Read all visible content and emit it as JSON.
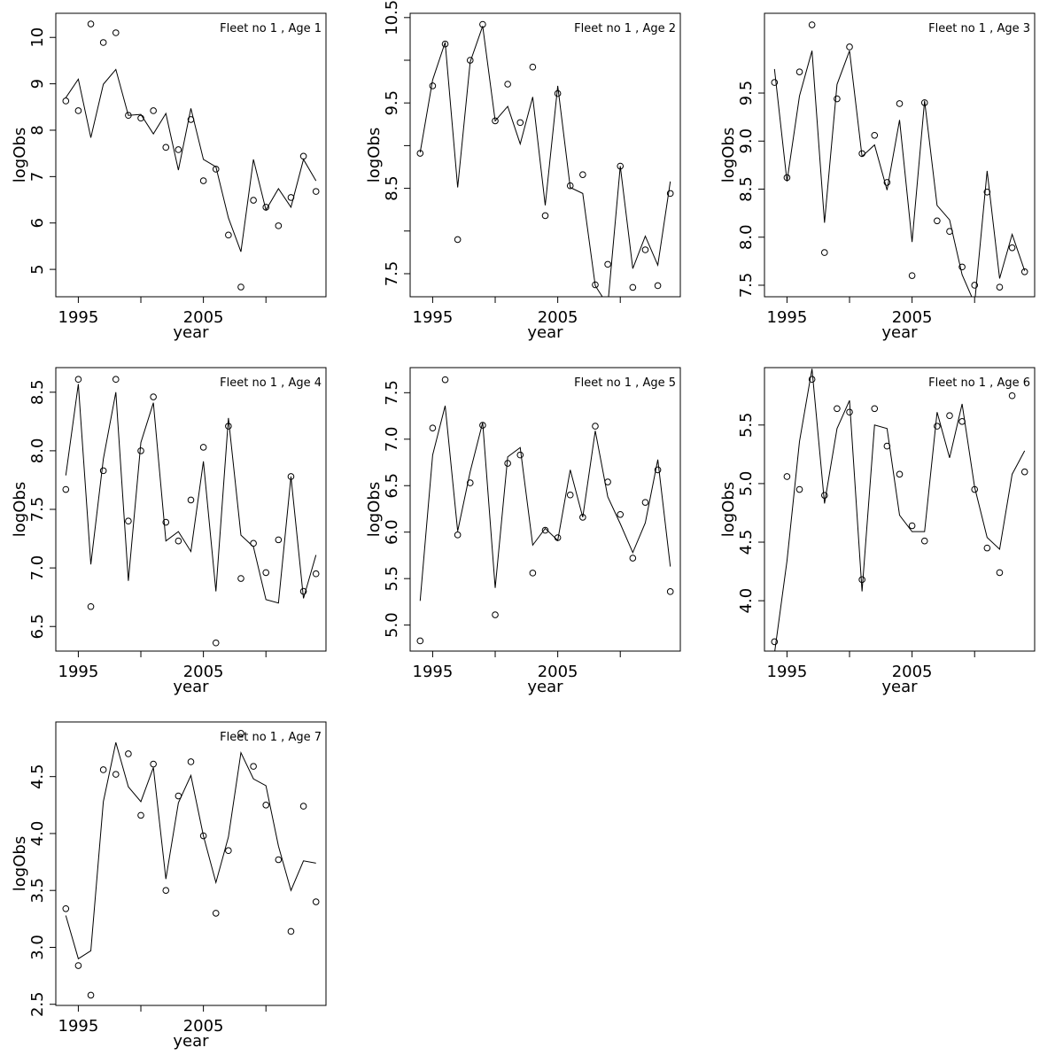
{
  "chart_data": [
    {
      "type": "line",
      "title": "Fleet no 1 , Age 1",
      "xlabel": "year",
      "ylabel": "logObs",
      "x": [
        1994,
        1995,
        1996,
        1997,
        1998,
        1999,
        2000,
        2001,
        2002,
        2003,
        2004,
        2005,
        2006,
        2007,
        2008,
        2009,
        2010,
        2011,
        2012,
        2013,
        2014
      ],
      "xlim": [
        1993.2,
        2014.8
      ],
      "xticks": [
        1995,
        {
          "value": 2000,
          "label": null
        },
        2005,
        {
          "value": 2010,
          "label": null
        }
      ],
      "ylim": [
        4.41,
        10.52
      ],
      "yticks": [
        5,
        6,
        7,
        8,
        9,
        10
      ],
      "series": [
        {
          "style": "points",
          "color": "#000000",
          "values": [
            8.63,
            8.42,
            10.29,
            9.89,
            10.1,
            8.32,
            8.26,
            8.42,
            7.63,
            7.58,
            8.23,
            6.91,
            7.16,
            5.74,
            4.62,
            6.49,
            6.34,
            5.94,
            6.55,
            7.44,
            6.68
          ]
        },
        {
          "style": "line",
          "color": "#000000",
          "values": [
            8.7,
            9.1,
            7.84,
            8.99,
            9.31,
            8.32,
            8.34,
            7.92,
            8.36,
            7.14,
            8.47,
            7.37,
            7.21,
            6.11,
            5.38,
            7.37,
            6.28,
            6.74,
            6.34,
            7.37,
            6.91
          ]
        }
      ]
    },
    {
      "type": "line",
      "title": "Fleet no 1 , Age 2",
      "xlabel": "year",
      "ylabel": "logObs",
      "x": [
        1994,
        1995,
        1996,
        1997,
        1998,
        1999,
        2000,
        2001,
        2002,
        2003,
        2004,
        2005,
        2006,
        2007,
        2008,
        2009,
        2010,
        2011,
        2012,
        2013,
        2014
      ],
      "xlim": [
        1993.2,
        2014.8
      ],
      "xticks": [
        1995,
        {
          "value": 2000,
          "label": null
        },
        2005,
        {
          "value": 2010,
          "label": null
        }
      ],
      "ylim": [
        7.23,
        10.55
      ],
      "yticks": [
        7.5,
        {
          "value": 8,
          "label": null
        },
        8.5,
        {
          "value": 9,
          "label": null
        },
        9.5,
        {
          "value": 10,
          "label": null
        },
        10.5
      ],
      "series": [
        {
          "style": "points",
          "color": "#000000",
          "values": [
            8.91,
            9.7,
            10.19,
            7.9,
            10.0,
            10.42,
            9.29,
            9.72,
            9.27,
            9.92,
            8.18,
            9.61,
            8.53,
            8.66,
            7.37,
            7.61,
            8.76,
            7.34,
            7.78,
            7.36,
            8.44
          ]
        },
        {
          "style": "line",
          "color": "#000000",
          "values": [
            8.92,
            9.77,
            10.21,
            8.51,
            9.98,
            10.4,
            9.29,
            9.46,
            9.02,
            9.57,
            8.3,
            9.7,
            8.51,
            8.44,
            7.36,
            7.13,
            8.76,
            7.56,
            7.94,
            7.6,
            8.58
          ]
        }
      ]
    },
    {
      "type": "line",
      "title": "Fleet no 1 , Age 3",
      "xlabel": "year",
      "ylabel": "logObs",
      "x": [
        1994,
        1995,
        1996,
        1997,
        1998,
        1999,
        2000,
        2001,
        2002,
        2003,
        2004,
        2005,
        2006,
        2007,
        2008,
        2009,
        2010,
        2011,
        2012,
        2013,
        2014
      ],
      "xlim": [
        1993.2,
        2014.8
      ],
      "xticks": [
        1995,
        {
          "value": 2000,
          "label": null
        },
        2005,
        {
          "value": 2010,
          "label": null
        }
      ],
      "ylim": [
        7.38,
        10.33
      ],
      "yticks": [
        7.5,
        {
          "value": 8,
          "label": "8.0"
        },
        8.5,
        {
          "value": 9,
          "label": "9.0"
        },
        9.5
      ],
      "series": [
        {
          "style": "points",
          "color": "#000000",
          "values": [
            9.61,
            8.62,
            9.72,
            10.21,
            7.84,
            9.44,
            9.98,
            8.87,
            9.06,
            8.57,
            9.39,
            7.6,
            9.4,
            8.17,
            8.06,
            7.69,
            7.5,
            8.47,
            7.48,
            7.89,
            7.64
          ]
        },
        {
          "style": "line",
          "color": "#000000",
          "values": [
            9.75,
            8.58,
            9.47,
            9.94,
            8.15,
            9.59,
            9.94,
            8.84,
            8.96,
            8.49,
            9.22,
            7.95,
            9.42,
            8.33,
            8.18,
            7.61,
            7.31,
            8.69,
            7.57,
            8.03,
            7.65
          ]
        }
      ]
    },
    {
      "type": "line",
      "title": "Fleet no 1 , Age 4",
      "xlabel": "year",
      "ylabel": "logObs",
      "x": [
        1994,
        1995,
        1996,
        1997,
        1998,
        1999,
        2000,
        2001,
        2002,
        2003,
        2004,
        2005,
        2006,
        2007,
        2008,
        2009,
        2010,
        2011,
        2012,
        2013,
        2014
      ],
      "xlim": [
        1993.2,
        2014.8
      ],
      "xticks": [
        1995,
        {
          "value": 2000,
          "label": null
        },
        2005,
        {
          "value": 2010,
          "label": null
        }
      ],
      "ylim": [
        6.29,
        8.71
      ],
      "yticks": [
        6.5,
        {
          "value": 7,
          "label": "7.0"
        },
        7.5,
        {
          "value": 8,
          "label": "8.0"
        },
        8.5
      ],
      "series": [
        {
          "style": "points",
          "color": "#000000",
          "values": [
            7.67,
            8.61,
            6.67,
            7.83,
            8.61,
            7.4,
            8.0,
            8.46,
            7.39,
            7.23,
            7.58,
            8.03,
            6.36,
            8.21,
            6.91,
            7.21,
            6.96,
            7.24,
            7.78,
            6.8,
            6.95
          ]
        },
        {
          "style": "line",
          "color": "#000000",
          "values": [
            7.79,
            8.57,
            7.03,
            7.93,
            8.5,
            6.89,
            8.07,
            8.41,
            7.23,
            7.31,
            7.14,
            7.91,
            6.8,
            8.28,
            7.28,
            7.18,
            6.73,
            6.7,
            7.78,
            6.74,
            7.11
          ]
        }
      ]
    },
    {
      "type": "line",
      "title": "Fleet no 1 , Age 5",
      "xlabel": "year",
      "ylabel": "logObs",
      "x": [
        1994,
        1995,
        1996,
        1997,
        1998,
        1999,
        2000,
        2001,
        2002,
        2003,
        2004,
        2005,
        2006,
        2007,
        2008,
        2009,
        2010,
        2011,
        2012,
        2013,
        2014
      ],
      "xlim": [
        1993.2,
        2014.8
      ],
      "xticks": [
        1995,
        {
          "value": 2000,
          "label": null
        },
        2005,
        {
          "value": 2010,
          "label": null
        }
      ],
      "ylim": [
        4.72,
        7.77
      ],
      "yticks": [
        {
          "value": 5,
          "label": "5.0"
        },
        5.5,
        {
          "value": 6,
          "label": "6.0"
        },
        6.5,
        {
          "value": 7,
          "label": "7.0"
        },
        7.5
      ],
      "series": [
        {
          "style": "points",
          "color": "#000000",
          "values": [
            4.83,
            7.12,
            7.64,
            5.97,
            6.53,
            7.15,
            5.11,
            6.74,
            6.83,
            5.56,
            6.02,
            5.94,
            6.4,
            6.16,
            7.14,
            6.54,
            6.19,
            5.72,
            6.32,
            6.67,
            5.36
          ]
        },
        {
          "style": "line",
          "color": "#000000",
          "values": [
            5.26,
            6.83,
            7.36,
            6.01,
            6.65,
            7.18,
            5.4,
            6.81,
            6.91,
            5.86,
            6.04,
            5.91,
            6.67,
            6.16,
            7.09,
            6.38,
            6.09,
            5.78,
            6.1,
            6.78,
            5.63
          ]
        }
      ]
    },
    {
      "type": "line",
      "title": "Fleet no 1 , Age 6",
      "xlabel": "year",
      "ylabel": "logObs",
      "x": [
        1994,
        1995,
        1996,
        1997,
        1998,
        1999,
        2000,
        2001,
        2002,
        2003,
        2004,
        2005,
        2006,
        2007,
        2008,
        2009,
        2010,
        2011,
        2012,
        2013,
        2014
      ],
      "xlim": [
        1993.2,
        2014.8
      ],
      "xticks": [
        1995,
        {
          "value": 2000,
          "label": null
        },
        2005,
        {
          "value": 2010,
          "label": null
        }
      ],
      "ylim": [
        3.57,
        5.99
      ],
      "yticks": [
        {
          "value": 4,
          "label": "4.0"
        },
        4.5,
        {
          "value": 5,
          "label": "5.0"
        },
        5.5
      ],
      "series": [
        {
          "style": "points",
          "color": "#000000",
          "values": [
            3.65,
            5.06,
            4.95,
            5.89,
            4.9,
            5.64,
            5.61,
            4.18,
            5.64,
            5.32,
            5.08,
            4.64,
            4.51,
            5.49,
            5.58,
            5.53,
            4.95,
            4.45,
            4.24,
            5.75,
            5.1
          ]
        },
        {
          "style": "line",
          "color": "#000000",
          "values": [
            3.55,
            4.34,
            5.36,
            5.98,
            4.83,
            5.47,
            5.71,
            4.08,
            5.5,
            5.47,
            4.73,
            4.59,
            4.59,
            5.61,
            5.22,
            5.68,
            4.97,
            4.54,
            4.44,
            5.08,
            5.28
          ]
        }
      ]
    },
    {
      "type": "line",
      "title": "Fleet no 1 , Age 7",
      "xlabel": "year",
      "ylabel": "logObs",
      "x": [
        1994,
        1995,
        1996,
        1997,
        1998,
        1999,
        2000,
        2001,
        2002,
        2003,
        2004,
        2005,
        2006,
        2007,
        2008,
        2009,
        2010,
        2011,
        2012,
        2013,
        2014
      ],
      "xlim": [
        1993.2,
        2014.8
      ],
      "xticks": [
        1995,
        {
          "value": 2000,
          "label": null
        },
        2005,
        {
          "value": 2010,
          "label": null
        }
      ],
      "ylim": [
        2.49,
        4.98
      ],
      "yticks": [
        2.5,
        {
          "value": 3,
          "label": "3.0"
        },
        3.5,
        {
          "value": 4,
          "label": "4.0"
        },
        4.5
      ],
      "series": [
        {
          "style": "points",
          "color": "#000000",
          "values": [
            3.34,
            2.84,
            2.58,
            4.56,
            4.52,
            4.7,
            4.16,
            4.61,
            3.5,
            4.33,
            4.63,
            3.98,
            3.3,
            3.85,
            4.88,
            4.59,
            4.25,
            3.77,
            3.14,
            4.24,
            3.4
          ]
        },
        {
          "style": "line",
          "color": "#000000",
          "values": [
            3.28,
            2.9,
            2.97,
            4.28,
            4.8,
            4.41,
            4.28,
            4.58,
            3.6,
            4.27,
            4.51,
            3.98,
            3.57,
            3.97,
            4.71,
            4.48,
            4.42,
            3.89,
            3.5,
            3.76,
            3.74
          ]
        }
      ]
    }
  ]
}
